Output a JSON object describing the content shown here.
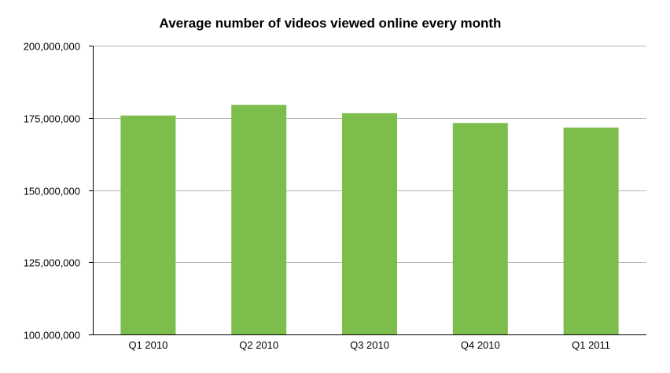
{
  "chart_data": {
    "type": "bar",
    "title": "Average number of videos viewed online every month",
    "categories": [
      "Q1 2010",
      "Q2 2010",
      "Q3 2010",
      "Q4 2010",
      "Q1 2011"
    ],
    "values": [
      175800000,
      179500000,
      176600000,
      173200000,
      171600000
    ],
    "ylim": [
      100000000,
      200000000
    ],
    "yticks": [
      100000000,
      125000000,
      150000000,
      175000000,
      200000000
    ],
    "ytick_labels": [
      "100,000,000",
      "125,000,000",
      "150,000,000",
      "175,000,000",
      "200,000,000"
    ],
    "xlabel": "",
    "ylabel": "",
    "grid": "horizontal",
    "bar_color": "#7dbd4c",
    "grid_color": "#b3b3b3"
  }
}
